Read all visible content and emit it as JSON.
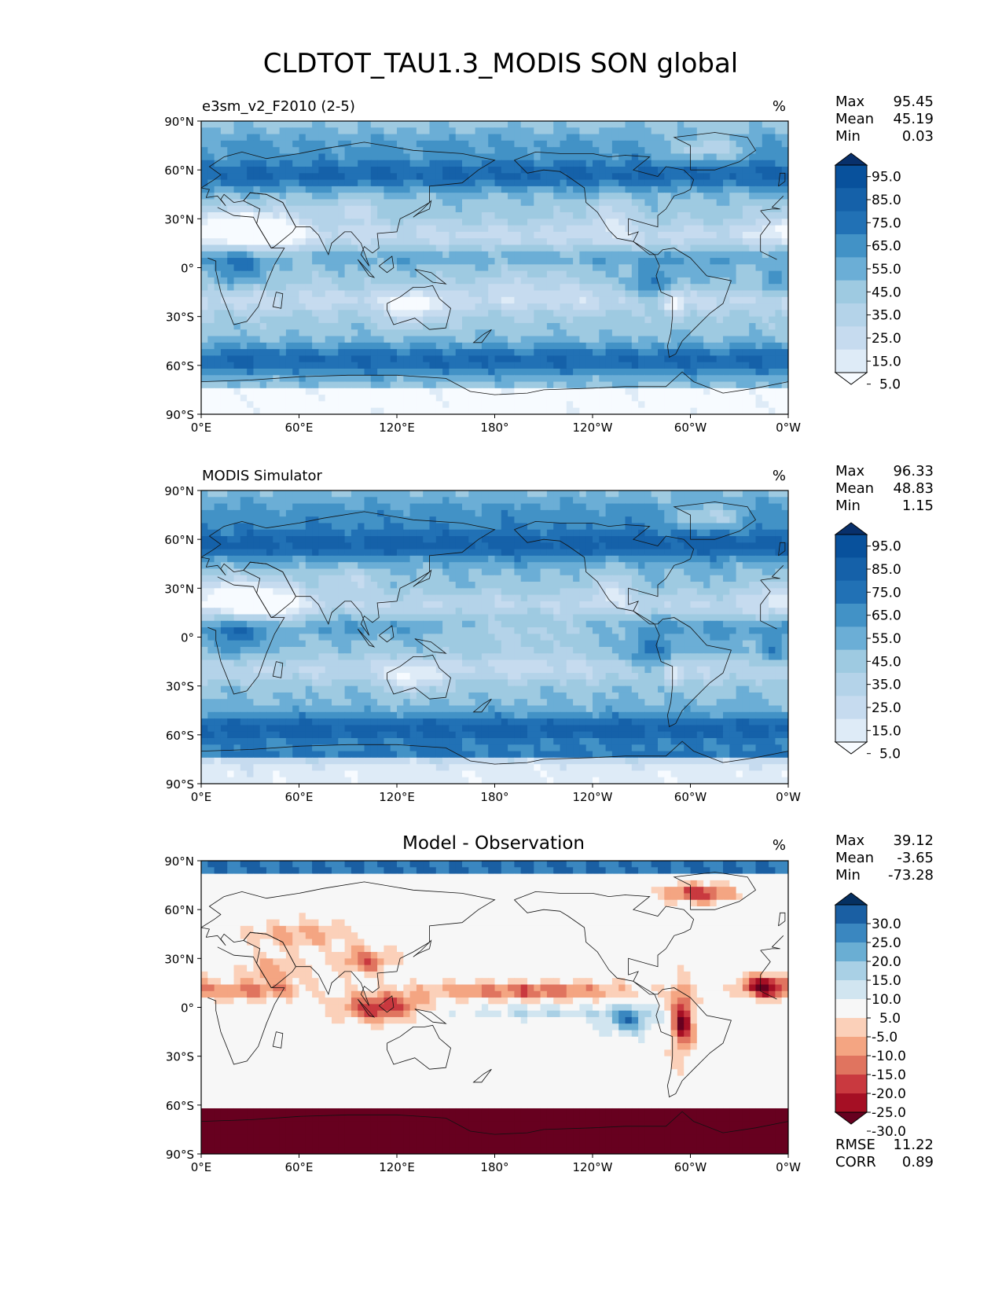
{
  "figure": {
    "title": "CLDTOT_TAU1.3_MODIS SON global"
  },
  "axes": {
    "lat_ticks": [
      "90°N",
      "60°N",
      "30°N",
      "0°",
      "30°S",
      "60°S",
      "90°S"
    ],
    "lon_ticks": [
      "0°E",
      "60°E",
      "120°E",
      "180°",
      "120°W",
      "60°W",
      "0°W"
    ]
  },
  "colors": {
    "blues": [
      "#f7fbff",
      "#deebf7",
      "#c6dbef",
      "#b4d3e9",
      "#9ecae1",
      "#6baed6",
      "#4292c6",
      "#2171b5",
      "#1561a9",
      "#08519c",
      "#08306b"
    ],
    "diverging": [
      "#67001f",
      "#a50f24",
      "#c9393f",
      "#e0745f",
      "#f4a582",
      "#fbd0b9",
      "#f7f7f7",
      "#d1e5f0",
      "#a9d0e5",
      "#6aaed3",
      "#3a87c0",
      "#1a5fa3",
      "#053061"
    ]
  },
  "chart_data": [
    {
      "type": "heatmap",
      "name": "model",
      "subtitle_left": "e3sm_v2_F2010 (2-5)",
      "units": "%",
      "title": "",
      "stats": [
        {
          "label": "Max",
          "value": "95.45"
        },
        {
          "label": "Mean",
          "value": "45.19"
        },
        {
          "label": "Min",
          "value": "0.03"
        }
      ],
      "colorbar_ticks": [
        "95.0",
        "85.0",
        "75.0",
        "65.0",
        "55.0",
        "45.0",
        "35.0",
        "25.0",
        "15.0",
        "5.0"
      ],
      "xlim": [
        0,
        360
      ],
      "ylim": [
        -90,
        90
      ]
    },
    {
      "type": "heatmap",
      "name": "observation",
      "subtitle_left": "MODIS Simulator",
      "units": "%",
      "title": "",
      "stats": [
        {
          "label": "Max",
          "value": "96.33"
        },
        {
          "label": "Mean",
          "value": "48.83"
        },
        {
          "label": "Min",
          "value": "1.15"
        }
      ],
      "colorbar_ticks": [
        "95.0",
        "85.0",
        "75.0",
        "65.0",
        "55.0",
        "45.0",
        "35.0",
        "25.0",
        "15.0",
        "5.0"
      ],
      "xlim": [
        0,
        360
      ],
      "ylim": [
        -90,
        90
      ]
    },
    {
      "type": "heatmap",
      "name": "difference",
      "subtitle_left": "",
      "units": "%",
      "title": "Model - Observation",
      "stats": [
        {
          "label": "Max",
          "value": "39.12"
        },
        {
          "label": "Mean",
          "value": "-3.65"
        },
        {
          "label": "Min",
          "value": "-73.28"
        }
      ],
      "colorbar_ticks": [
        "30.0",
        "25.0",
        "20.0",
        "15.0",
        "10.0",
        "5.0",
        "-5.0",
        "-10.0",
        "-15.0",
        "-20.0",
        "-25.0",
        "-30.0"
      ],
      "extra_stats": [
        {
          "label": "RMSE",
          "value": "11.22"
        },
        {
          "label": "CORR",
          "value": "0.89"
        }
      ],
      "xlim": [
        0,
        360
      ],
      "ylim": [
        -90,
        90
      ]
    }
  ]
}
